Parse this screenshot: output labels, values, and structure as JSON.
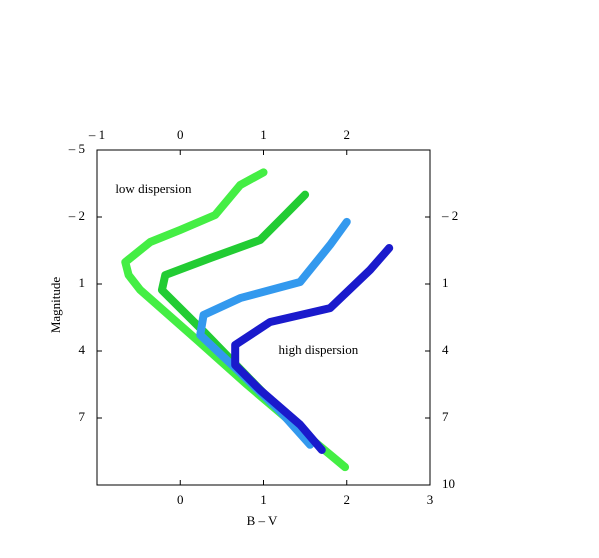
{
  "chart_data": {
    "type": "line",
    "xlabel": "B – V",
    "ylabel": "Magnitude",
    "annotations": [
      {
        "text": "low dispersion",
        "x": -0.78,
        "y": -3.2
      },
      {
        "text": "high dispersion",
        "x": 1.18,
        "y": 4.0
      }
    ],
    "xlim": [
      -1,
      3
    ],
    "ylim": [
      10,
      -5
    ],
    "y_inverted": true,
    "xticks": [
      0,
      1,
      2,
      3
    ],
    "x2ticks": [
      {
        "value": -1,
        "label": "– 1"
      },
      0,
      1,
      2
    ],
    "yticks": [
      {
        "value": -5,
        "label": "– 5"
      },
      {
        "value": -2,
        "label": "– 2"
      },
      1,
      4,
      7
    ],
    "y2ticks": [
      {
        "value": -2,
        "label": "– 2"
      },
      1,
      4,
      7,
      10
    ],
    "series": [
      {
        "color": "#44ee44",
        "x": [
          1.0,
          0.72,
          0.42,
          0.0,
          -0.36,
          -0.66,
          -0.62,
          -0.48,
          0.2,
          0.8,
          1.4,
          1.98
        ],
        "y": [
          -4.0,
          -3.43,
          -2.09,
          -1.42,
          -0.88,
          0.02,
          0.6,
          1.27,
          3.5,
          5.5,
          7.4,
          9.2
        ]
      },
      {
        "color": "#22cc33",
        "x": [
          1.5,
          1.26,
          0.96,
          0.36,
          -0.18,
          -0.22,
          0.3,
          0.9,
          1.56
        ],
        "y": [
          -3.0,
          -2.09,
          -0.97,
          -0.16,
          0.6,
          1.27,
          3.2,
          5.5,
          8.0
        ]
      },
      {
        "color": "#3399ee",
        "x": [
          2.0,
          1.8,
          1.44,
          0.72,
          0.28,
          0.24,
          0.7,
          1.2,
          1.56
        ],
        "y": [
          -1.78,
          -0.75,
          0.91,
          1.63,
          2.39,
          3.28,
          4.9,
          6.7,
          8.2
        ]
      },
      {
        "color": "#1a1acc",
        "x": [
          2.51,
          2.28,
          1.8,
          1.08,
          0.66,
          0.66,
          0.96,
          1.44,
          1.7
        ],
        "y": [
          -0.61,
          0.37,
          2.08,
          2.7,
          3.73,
          4.63,
          5.75,
          7.3,
          8.43
        ]
      }
    ]
  }
}
